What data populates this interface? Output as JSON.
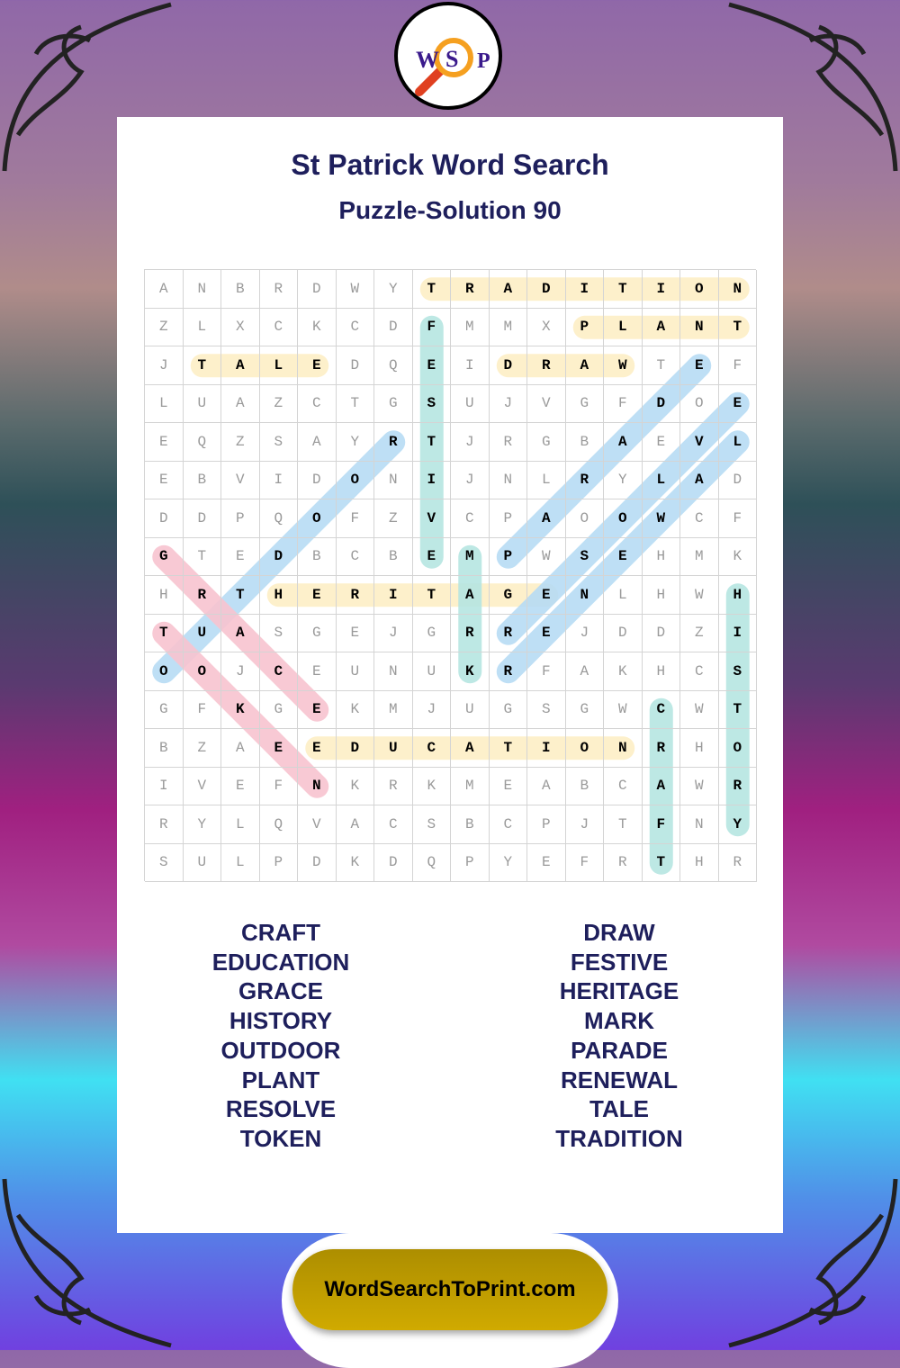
{
  "header": {
    "title": "St Patrick Word Search",
    "subtitle": "Puzzle-Solution 90"
  },
  "logo": {
    "letters": [
      "W",
      "S",
      "P"
    ],
    "icon": "magnifier-icon"
  },
  "grid": [
    "ANBRDWYTRADITION",
    "ZLXCKCDFMMXPLANT",
    "JTALEDQEIDRAWTEF",
    "LUAZCTGSUJVGFDOE",
    "EQZSAYRTJRGBAEVL",
    "EBVIDONIJNLRYLAD",
    "DDPQOFZVCPAOOWCF",
    "GTEDBCBEMPWSEHMK",
    "HRTHERITAGENLHWH",
    "TUASGEJGRREJDDZI",
    "OOJCEUNUKRFAKHCS",
    "GFKGEKMJUGSGWCWT",
    "BZAEEDUCATIONRHO",
    "IVEFNKRKMEABCAWR",
    "RYLQVACSBCPJTFNY",
    "SULPDKDQPYEFRTHR"
  ],
  "solutions": [
    {
      "word": "TRADITION",
      "start": [
        0,
        7
      ],
      "end": [
        0,
        15
      ],
      "color": "#fdefc6"
    },
    {
      "word": "PLANT",
      "start": [
        1,
        11
      ],
      "end": [
        1,
        15
      ],
      "color": "#fdefc6"
    },
    {
      "word": "TALE",
      "start": [
        2,
        1
      ],
      "end": [
        2,
        4
      ],
      "color": "#fdefc6"
    },
    {
      "word": "DRAW",
      "start": [
        2,
        9
      ],
      "end": [
        2,
        12
      ],
      "color": "#fdefc6"
    },
    {
      "word": "HERITAGE",
      "start": [
        8,
        3
      ],
      "end": [
        8,
        10
      ],
      "color": "#fdefc6"
    },
    {
      "word": "EDUCATION",
      "start": [
        12,
        4
      ],
      "end": [
        12,
        12
      ],
      "color": "#fdefc6"
    },
    {
      "word": "FESTIVE",
      "start": [
        1,
        7
      ],
      "end": [
        7,
        7
      ],
      "color": "#b6e6e2"
    },
    {
      "word": "MARK",
      "start": [
        7,
        8
      ],
      "end": [
        10,
        8
      ],
      "color": "#b6e6e2"
    },
    {
      "word": "HISTORY",
      "start": [
        8,
        15
      ],
      "end": [
        14,
        15
      ],
      "color": "#b6e6e2"
    },
    {
      "word": "CRAFT",
      "start": [
        11,
        13
      ],
      "end": [
        15,
        13
      ],
      "color": "#b6e6e2"
    },
    {
      "word": "OUTDOOR",
      "start": [
        10,
        0
      ],
      "end": [
        4,
        6
      ],
      "color": "#b7dcf5"
    },
    {
      "word": "PARADE",
      "start": [
        7,
        9
      ],
      "end": [
        2,
        14
      ],
      "color": "#b7dcf5"
    },
    {
      "word": "RESOLVE",
      "start": [
        9,
        9
      ],
      "end": [
        3,
        15
      ],
      "color": "#b7dcf5"
    },
    {
      "word": "RENEWAL",
      "start": [
        10,
        9
      ],
      "end": [
        4,
        15
      ],
      "color": "#b7dcf5"
    },
    {
      "word": "GRACE",
      "start": [
        7,
        0
      ],
      "end": [
        11,
        4
      ],
      "color": "#f8c4d0"
    },
    {
      "word": "TOKEN",
      "start": [
        9,
        0
      ],
      "end": [
        13,
        4
      ],
      "color": "#f8c4d0"
    }
  ],
  "word_list": {
    "left": [
      "CRAFT",
      "EDUCATION",
      "GRACE",
      "HISTORY",
      "OUTDOOR",
      "PLANT",
      "RESOLVE",
      "TOKEN"
    ],
    "right": [
      "DRAW",
      "FESTIVE",
      "HERITAGE",
      "MARK",
      "PARADE",
      "RENEWAL",
      "TALE",
      "TRADITION"
    ]
  },
  "footer": {
    "site": "WordSearchToPrint.com"
  },
  "colors": {
    "title": "#1e1f5c",
    "logo_letters": "#3a1a8c",
    "footer_gold": "#c09e00"
  }
}
